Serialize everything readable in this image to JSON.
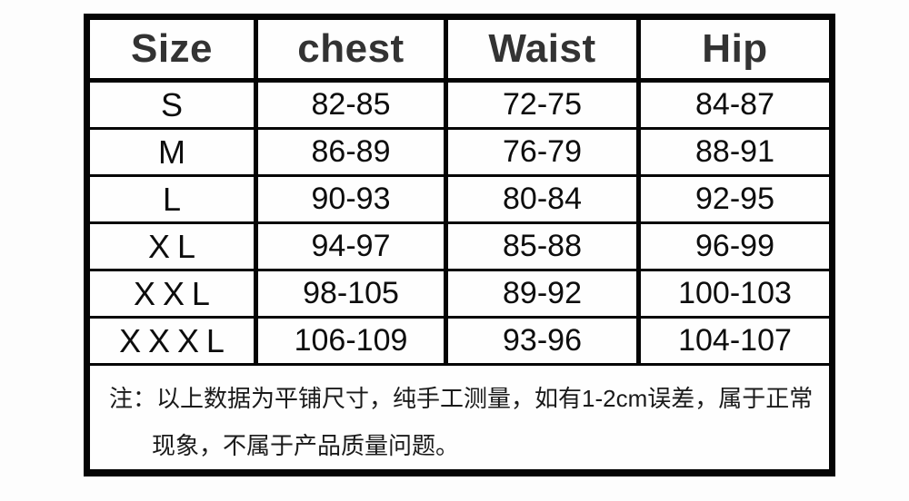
{
  "size_chart": {
    "headers": [
      "Size",
      "chest",
      "Waist",
      "Hip"
    ],
    "rows": [
      {
        "size": "S",
        "chest": "82-85",
        "waist": "72-75",
        "hip": "84-87"
      },
      {
        "size": "M",
        "chest": "86-89",
        "waist": "76-79",
        "hip": "88-91"
      },
      {
        "size": "L",
        "chest": "90-93",
        "waist": "80-84",
        "hip": "92-95"
      },
      {
        "size": "XL",
        "chest": "94-97",
        "waist": "85-88",
        "hip": "96-99"
      },
      {
        "size": "XXL",
        "chest": "98-105",
        "waist": "89-92",
        "hip": "100-103"
      },
      {
        "size": "XXXL",
        "chest": "106-109",
        "waist": "93-96",
        "hip": "104-107"
      }
    ],
    "note": {
      "line1": "注：以上数据为平铺尺寸，纯手工测量，如有1-2cm误差，属于正常",
      "line2": "现象，不属于产品质量问题。"
    },
    "colors": {
      "border": "#050505",
      "header_text": "#333333",
      "cell_text": "#0d0d0d",
      "note_text": "#1a1a1a",
      "background": "#fdfdfd"
    }
  }
}
